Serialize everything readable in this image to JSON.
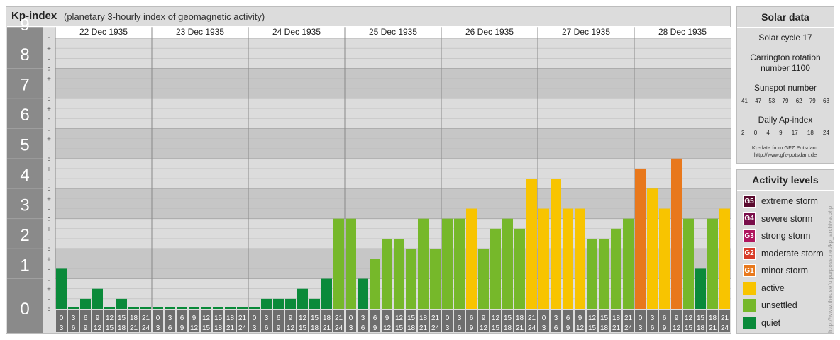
{
  "header": {
    "title": "Kp-index",
    "subtitle": "(planetary 3-hourly index of geomagnetic activity)"
  },
  "chart_data": {
    "type": "bar",
    "title": "Kp-index",
    "subtitle": "(planetary 3-hourly index of geomagnetic activity)",
    "ylim": [
      0,
      9
    ],
    "y_ticks": [
      "0",
      "1",
      "2",
      "3",
      "4",
      "5",
      "6",
      "7",
      "8",
      "9"
    ],
    "minor_ticks": [
      "o",
      "+",
      "-",
      "o",
      "+",
      "-",
      "o",
      "+",
      "-",
      "o",
      "+",
      "-",
      "o",
      "+",
      "-",
      "o",
      "+",
      "-",
      "o",
      "+",
      "-",
      "o",
      "+",
      "-",
      "o",
      "+",
      "-",
      "o"
    ],
    "days": [
      "22 Dec 1935",
      "23 Dec 1935",
      "24 Dec 1935",
      "25 Dec 1935",
      "26 Dec 1935",
      "27 Dec 1935",
      "28 Dec 1935"
    ],
    "intervals": [
      [
        "0",
        "3"
      ],
      [
        "3",
        "6"
      ],
      [
        "6",
        "9"
      ],
      [
        "9",
        "12"
      ],
      [
        "12",
        "15"
      ],
      [
        "15",
        "18"
      ],
      [
        "18",
        "21"
      ],
      [
        "21",
        "24"
      ]
    ],
    "values": [
      [
        1.333,
        0,
        0.333,
        0.667,
        0,
        0.333,
        0,
        0
      ],
      [
        0,
        0,
        0,
        0,
        0,
        0,
        0,
        0
      ],
      [
        0,
        0.333,
        0.333,
        0.333,
        0.667,
        0.333,
        1,
        3
      ],
      [
        3,
        1,
        1.667,
        2.333,
        2.333,
        2,
        3,
        2
      ],
      [
        3,
        3,
        3.333,
        2,
        2.667,
        3,
        2.667,
        4.333
      ],
      [
        3.333,
        4.333,
        3.333,
        3.333,
        2.333,
        2.333,
        2.667,
        3
      ],
      [
        4.667,
        4,
        3.333,
        5,
        3,
        1.333,
        3,
        3.333
      ]
    ],
    "grid": true
  },
  "solar": {
    "title": "Solar data",
    "cycle": "Solar cycle 17",
    "carrington": "Carrington rotation number 1100",
    "sunspot_label": "Sunspot number",
    "sunspot_values": [
      "41",
      "47",
      "53",
      "79",
      "62",
      "79",
      "63"
    ],
    "ap_label": "Daily Ap-index",
    "ap_values": [
      "2",
      "0",
      "4",
      "9",
      "17",
      "18",
      "24"
    ],
    "credit_line1": "Kp-data from GFZ Potsdam:",
    "credit_line2": "http://www.gfz-potsdam.de"
  },
  "activity": {
    "title": "Activity levels",
    "levels": [
      {
        "code": "G5",
        "label": "extreme storm",
        "color": "#5a0a2e"
      },
      {
        "code": "G4",
        "label": "severe storm",
        "color": "#7a0e4a"
      },
      {
        "code": "G3",
        "label": "strong storm",
        "color": "#b0165e"
      },
      {
        "code": "G2",
        "label": "moderate storm",
        "color": "#d83c28"
      },
      {
        "code": "G1",
        "label": "minor storm",
        "color": "#e8781c"
      },
      {
        "code": "",
        "label": "active",
        "color": "#f8c400"
      },
      {
        "code": "",
        "label": "unsettled",
        "color": "#76b82a"
      },
      {
        "code": "",
        "label": "quiet",
        "color": "#0a8a3a"
      }
    ]
  },
  "watermark": "http://www.theusefulpurpose.net/kp_archive.php"
}
